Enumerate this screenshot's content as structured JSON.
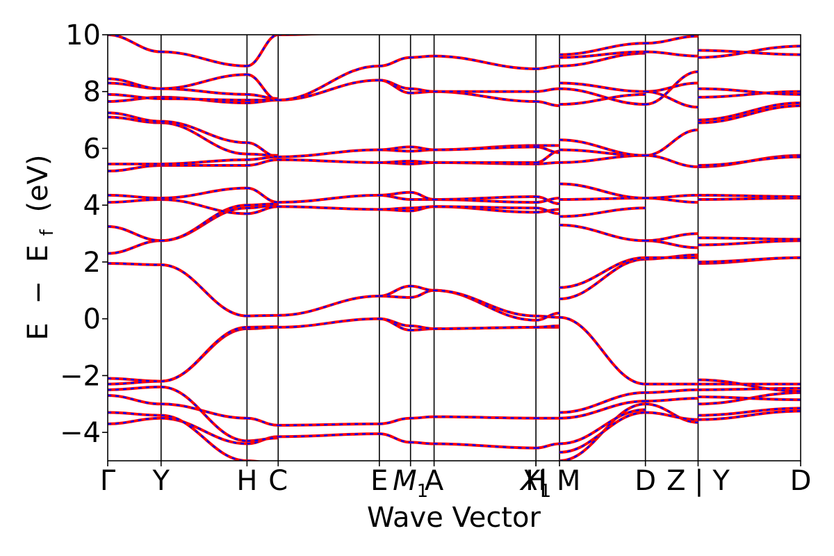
{
  "chart_data": {
    "type": "line",
    "title": "",
    "xlabel": "Wave Vector",
    "ylabel_parts": [
      "E",
      "−",
      "E",
      "f",
      "(eV)"
    ],
    "ylim": [
      -5,
      10
    ],
    "y_ticks": [
      {
        "value": 10,
        "label": "10"
      },
      {
        "value": 8,
        "label": "8"
      },
      {
        "value": 6,
        "label": "6"
      },
      {
        "value": 4,
        "label": "4"
      },
      {
        "value": 2,
        "label": "2"
      },
      {
        "value": 0,
        "label": "0"
      },
      {
        "value": -2,
        "label": "−2"
      },
      {
        "value": -4,
        "label": "−4"
      }
    ],
    "x_ticks": [
      {
        "k": 0.0,
        "label": "Γ",
        "sub": ""
      },
      {
        "k": 0.077,
        "label": "Y",
        "sub": ""
      },
      {
        "k": 0.201,
        "label": "H",
        "sub": ""
      },
      {
        "k": 0.246,
        "label": "C",
        "sub": ""
      },
      {
        "k": 0.392,
        "label": "E",
        "sub": ""
      },
      {
        "k": 0.437,
        "label": "M",
        "sub": "1"
      },
      {
        "k": 0.471,
        "label": "A",
        "sub": ""
      },
      {
        "k": 0.618,
        "label": "H",
        "sub": ""
      },
      {
        "k": 0.618,
        "label": "X",
        "sub": "1"
      },
      {
        "k": 0.652,
        "label": "| M",
        "sub": ""
      },
      {
        "k": 0.776,
        "label": "D",
        "sub": ""
      },
      {
        "k": 0.852,
        "label": "Z | Y",
        "sub": ""
      },
      {
        "k": 1.0,
        "label": "D",
        "sub": ""
      }
    ],
    "vertical_lines": [
      0.077,
      0.201,
      0.246,
      0.392,
      0.437,
      0.471,
      0.618,
      0.652,
      0.776,
      0.852
    ],
    "segments": [
      {
        "from": "Γ",
        "to": "Y",
        "k0": 0.0,
        "k1": 0.077,
        "bands": [
          [
            -3.7,
            -3.5
          ],
          [
            -3.3,
            -3.4
          ],
          [
            -2.7,
            -3.0
          ],
          [
            -2.5,
            -2.4
          ],
          [
            -2.3,
            -2.2
          ],
          [
            -2.1,
            -2.2
          ],
          [
            1.95,
            1.9
          ],
          [
            2.3,
            2.75
          ],
          [
            3.25,
            2.75
          ],
          [
            4.1,
            4.2
          ],
          [
            4.35,
            4.25
          ],
          [
            5.2,
            5.4
          ],
          [
            5.45,
            5.45
          ],
          [
            7.1,
            6.9
          ],
          [
            7.25,
            6.95
          ],
          [
            7.65,
            7.8
          ],
          [
            7.9,
            7.75
          ],
          [
            8.3,
            8.1
          ],
          [
            8.45,
            8.1
          ],
          [
            10.0,
            9.4
          ]
        ]
      },
      {
        "from": "Y",
        "to": "H",
        "k0": 0.077,
        "k1": 0.201,
        "bands": [
          [
            -3.5,
            -4.4
          ],
          [
            -3.4,
            -5.0
          ],
          [
            -3.0,
            -3.5
          ],
          [
            -2.4,
            -4.3
          ],
          [
            -2.2,
            -0.35
          ],
          [
            -2.2,
            -0.3
          ],
          [
            1.9,
            0.1
          ],
          [
            2.75,
            3.9
          ],
          [
            2.75,
            4.0
          ],
          [
            4.2,
            3.7
          ],
          [
            4.25,
            4.6
          ],
          [
            5.4,
            5.4
          ],
          [
            5.45,
            5.6
          ],
          [
            6.9,
            5.8
          ],
          [
            6.95,
            6.2
          ],
          [
            7.8,
            7.6
          ],
          [
            7.75,
            7.7
          ],
          [
            8.1,
            7.9
          ],
          [
            8.1,
            8.6
          ],
          [
            9.4,
            8.9
          ]
        ]
      },
      {
        "from": "H",
        "to": "C",
        "k0": 0.201,
        "k1": 0.246,
        "bands": [
          [
            -4.4,
            -4.15
          ],
          [
            -5.0,
            -5.1
          ],
          [
            -3.5,
            -3.75
          ],
          [
            -4.3,
            -4.2
          ],
          [
            -0.35,
            -0.3
          ],
          [
            -0.3,
            -0.28
          ],
          [
            0.1,
            0.12
          ],
          [
            3.9,
            4.0
          ],
          [
            4.0,
            4.05
          ],
          [
            3.7,
            3.95
          ],
          [
            4.6,
            4.1
          ],
          [
            5.4,
            5.6
          ],
          [
            5.6,
            5.7
          ],
          [
            5.8,
            5.75
          ],
          [
            6.2,
            5.7
          ],
          [
            7.6,
            7.7
          ],
          [
            7.7,
            7.7
          ],
          [
            7.9,
            7.75
          ],
          [
            8.6,
            7.7
          ],
          [
            8.9,
            10.0
          ]
        ]
      },
      {
        "from": "C",
        "to": "E",
        "k0": 0.246,
        "k1": 0.392,
        "bands": [
          [
            -4.15,
            -4.05
          ],
          [
            -3.75,
            -3.7
          ],
          [
            -0.3,
            0.0
          ],
          [
            0.12,
            0.8
          ],
          [
            3.95,
            3.85
          ],
          [
            4.1,
            4.35
          ],
          [
            5.6,
            5.5
          ],
          [
            5.7,
            5.95
          ],
          [
            7.7,
            8.4
          ],
          [
            7.7,
            8.9
          ],
          [
            10.0,
            10.1
          ]
        ]
      },
      {
        "from": "E",
        "to": "M1",
        "k0": 0.392,
        "k1": 0.437,
        "bands": [
          [
            -4.05,
            -4.35
          ],
          [
            -3.7,
            -3.5
          ],
          [
            0.0,
            -0.4
          ],
          [
            0.0,
            -0.25
          ],
          [
            0.8,
            0.75
          ],
          [
            0.8,
            1.15
          ],
          [
            3.85,
            3.8
          ],
          [
            3.85,
            3.9
          ],
          [
            4.35,
            4.2
          ],
          [
            4.35,
            4.45
          ],
          [
            5.5,
            5.45
          ],
          [
            5.5,
            5.55
          ],
          [
            5.95,
            5.9
          ],
          [
            5.95,
            6.05
          ],
          [
            8.4,
            7.95
          ],
          [
            8.4,
            8.1
          ],
          [
            8.9,
            9.2
          ]
        ]
      },
      {
        "from": "M1",
        "to": "A",
        "k0": 0.437,
        "k1": 0.471,
        "bands": [
          [
            -4.35,
            -4.4
          ],
          [
            -3.5,
            -3.45
          ],
          [
            -0.4,
            -0.35
          ],
          [
            -0.25,
            -0.35
          ],
          [
            0.75,
            1.0
          ],
          [
            1.15,
            1.0
          ],
          [
            3.8,
            3.95
          ],
          [
            3.9,
            3.95
          ],
          [
            4.2,
            4.2
          ],
          [
            4.45,
            4.2
          ],
          [
            5.45,
            5.5
          ],
          [
            5.55,
            5.5
          ],
          [
            5.9,
            5.95
          ],
          [
            6.05,
            5.95
          ],
          [
            7.95,
            8.0
          ],
          [
            8.1,
            8.0
          ],
          [
            9.2,
            9.25
          ]
        ]
      },
      {
        "from": "A",
        "to": "H",
        "k0": 0.471,
        "k1": 0.618,
        "bands": [
          [
            -4.4,
            -4.55
          ],
          [
            -3.45,
            -3.5
          ],
          [
            -0.35,
            -0.3
          ],
          [
            -0.35,
            -0.3
          ],
          [
            1.0,
            -0.05
          ],
          [
            1.0,
            0.1
          ],
          [
            3.95,
            3.75
          ],
          [
            3.95,
            3.9
          ],
          [
            4.2,
            4.1
          ],
          [
            4.2,
            4.3
          ],
          [
            5.5,
            5.45
          ],
          [
            5.5,
            5.5
          ],
          [
            5.95,
            6.1
          ],
          [
            5.95,
            6.05
          ],
          [
            8.0,
            7.65
          ],
          [
            8.0,
            8.0
          ],
          [
            9.25,
            8.8
          ]
        ]
      },
      {
        "from": "X1",
        "to": "|",
        "k0": 0.618,
        "k1": 0.652,
        "bands": [
          [
            -4.55,
            -4.4
          ],
          [
            -3.5,
            -3.5
          ],
          [
            -0.3,
            -0.3
          ],
          [
            -0.3,
            -0.25
          ],
          [
            -0.05,
            0.2
          ],
          [
            0.1,
            0.05
          ],
          [
            3.75,
            3.85
          ],
          [
            3.9,
            3.7
          ],
          [
            4.1,
            4.25
          ],
          [
            4.3,
            4.05
          ],
          [
            5.45,
            5.5
          ],
          [
            5.5,
            5.9
          ],
          [
            6.1,
            6.1
          ],
          [
            6.05,
            5.85
          ],
          [
            7.65,
            7.5
          ],
          [
            8.0,
            8.1
          ],
          [
            8.8,
            8.9
          ]
        ]
      },
      {
        "from": "M",
        "to": "D",
        "k0": 0.652,
        "k1": 0.776,
        "bands": [
          [
            -5.0,
            -3.0
          ],
          [
            -4.7,
            -3.3
          ],
          [
            -4.4,
            -3.2
          ],
          [
            -3.5,
            -2.9
          ],
          [
            -3.3,
            -2.6
          ],
          [
            0.05,
            -2.3
          ],
          [
            0.7,
            2.1
          ],
          [
            1.1,
            2.15
          ],
          [
            3.3,
            2.75
          ],
          [
            3.6,
            3.9
          ],
          [
            4.2,
            4.25
          ],
          [
            4.75,
            4.25
          ],
          [
            5.5,
            5.75
          ],
          [
            5.95,
            5.75
          ],
          [
            6.3,
            5.75
          ],
          [
            7.55,
            7.9
          ],
          [
            8.1,
            7.55
          ],
          [
            8.3,
            8.0
          ],
          [
            8.9,
            9.35
          ],
          [
            9.2,
            9.4
          ],
          [
            9.3,
            9.7
          ]
        ]
      },
      {
        "from": "D",
        "to": "Z",
        "k0": 0.776,
        "k1": 0.852,
        "bands": [
          [
            -3.0,
            -3.65
          ],
          [
            -3.3,
            -3.55
          ],
          [
            -2.9,
            -2.8
          ],
          [
            -2.6,
            -2.5
          ],
          [
            -2.3,
            -2.3
          ],
          [
            2.1,
            2.25
          ],
          [
            2.15,
            2.15
          ],
          [
            2.75,
            2.5
          ],
          [
            2.75,
            3.0
          ],
          [
            4.25,
            4.1
          ],
          [
            4.25,
            4.35
          ],
          [
            5.75,
            5.35
          ],
          [
            5.75,
            6.65
          ],
          [
            7.55,
            8.7
          ],
          [
            8.0,
            8.3
          ],
          [
            8.0,
            7.45
          ],
          [
            9.4,
            9.25
          ],
          [
            9.7,
            9.95
          ]
        ]
      },
      {
        "from": "Y",
        "to": "D",
        "k0": 0.852,
        "k1": 1.0,
        "bands": [
          [
            -3.55,
            -3.25
          ],
          [
            -3.4,
            -3.15
          ],
          [
            -3.0,
            -2.6
          ],
          [
            -2.75,
            -2.85
          ],
          [
            -2.5,
            -2.45
          ],
          [
            -2.3,
            -2.3
          ],
          [
            -2.15,
            -2.55
          ],
          [
            1.95,
            2.15
          ],
          [
            2.0,
            2.15
          ],
          [
            2.6,
            2.75
          ],
          [
            2.85,
            2.8
          ],
          [
            4.2,
            4.25
          ],
          [
            4.35,
            4.3
          ],
          [
            5.35,
            5.75
          ],
          [
            5.4,
            5.7
          ],
          [
            6.9,
            7.5
          ],
          [
            7.0,
            7.6
          ],
          [
            7.8,
            8.0
          ],
          [
            8.1,
            7.9
          ],
          [
            9.2,
            9.6
          ],
          [
            9.45,
            9.3
          ]
        ]
      }
    ],
    "colors": {
      "line_primary": "#ff0000",
      "line_dash": "#0000ff",
      "axes": "#000000"
    }
  }
}
